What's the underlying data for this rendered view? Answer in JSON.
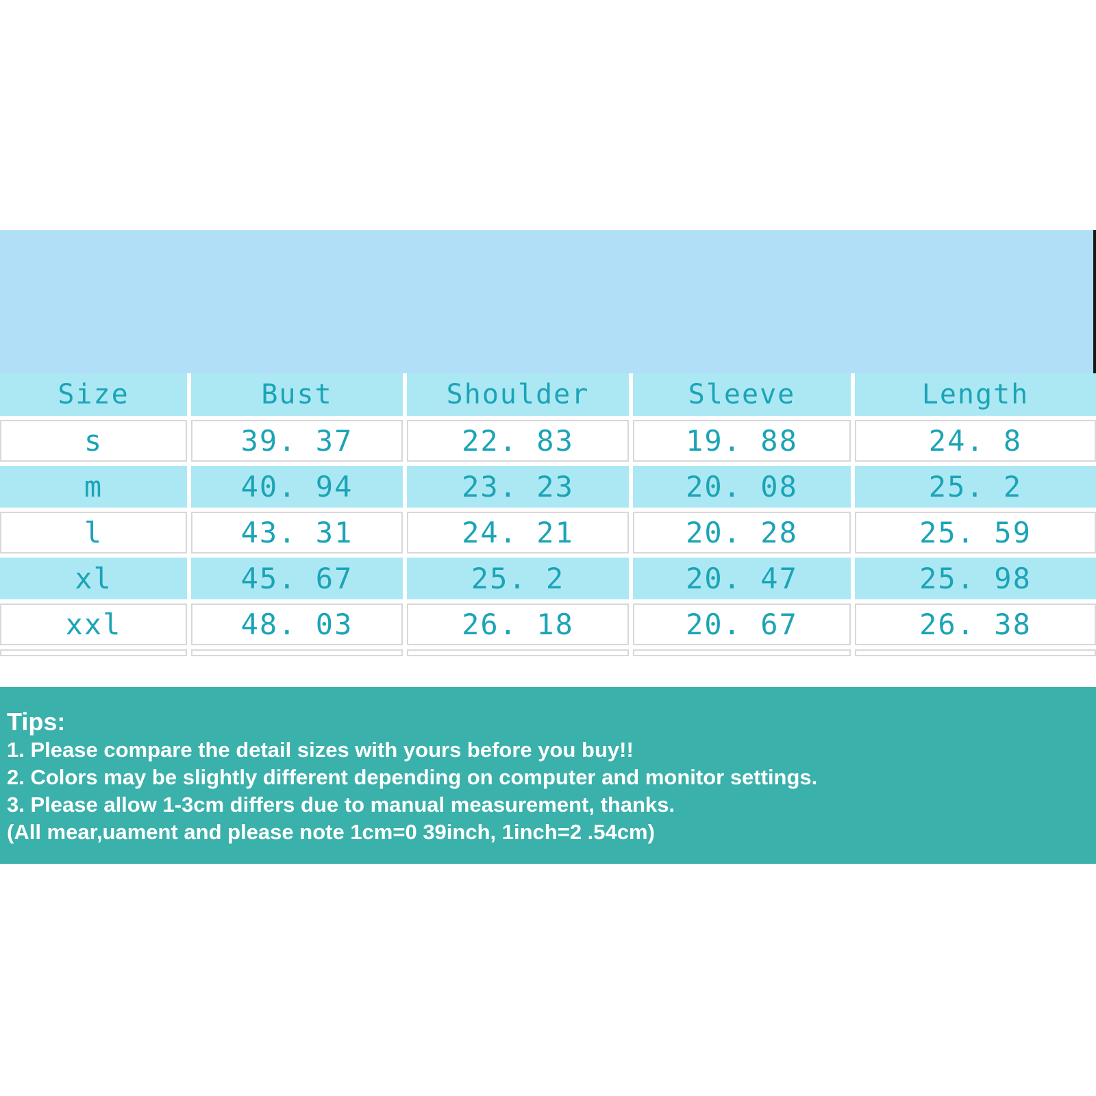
{
  "colors": {
    "page_background": "#ffffff",
    "hero_band": "#b0dff7",
    "edge_artifact": "#161616",
    "table_header_bg": "#abe8f4",
    "table_alt_row_bg": "#abe8f4",
    "table_row_bg": "#ffffff",
    "table_border": "#d8d8d8",
    "table_text": "#1ba4b6",
    "tips_band": "#3ab1aa",
    "tips_text": "#ffffff"
  },
  "table": {
    "columns": [
      "Size",
      "Bust",
      "Shoulder",
      "Sleeve",
      "Length"
    ],
    "rows": [
      [
        "s",
        "39. 37",
        "22. 83",
        "19. 88",
        "24. 8"
      ],
      [
        "m",
        "40. 94",
        "23. 23",
        "20. 08",
        "25. 2"
      ],
      [
        "l",
        "43. 31",
        "24. 21",
        "20. 28",
        "25. 59"
      ],
      [
        "xl",
        "45. 67",
        "25. 2",
        "20. 47",
        "25. 98"
      ],
      [
        "xxl",
        "48. 03",
        "26. 18",
        "20. 67",
        "26. 38"
      ]
    ]
  },
  "tips": {
    "title": "Tips:",
    "lines": [
      "1. Please compare the detail sizes with yours before you buy!!",
      "2. Colors may be slightly different depending on computer and monitor settings.",
      "3. Please allow 1-3cm differs due to manual measurement, thanks.",
      "(All mear,uament and please note 1cm=0 39inch, 1inch=2 .54cm)"
    ]
  },
  "chart_data": {
    "type": "table",
    "title": "Garment size chart",
    "columns": [
      "Size",
      "Bust",
      "Shoulder",
      "Sleeve",
      "Length"
    ],
    "rows": [
      [
        "s",
        39.37,
        22.83,
        19.88,
        24.8
      ],
      [
        "m",
        40.94,
        23.23,
        20.08,
        25.2
      ],
      [
        "l",
        43.31,
        24.21,
        20.28,
        25.59
      ],
      [
        "xl",
        45.67,
        25.2,
        20.47,
        25.98
      ],
      [
        "xxl",
        48.03,
        26.18,
        20.67,
        26.38
      ]
    ],
    "layout_hints": {
      "header_background": "#abe8f4",
      "zebra_striping": "white / cyan alternating, starting white",
      "text_color": "#1ba4b6"
    }
  }
}
